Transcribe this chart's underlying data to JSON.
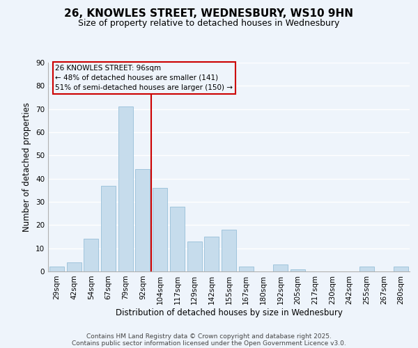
{
  "title": "26, KNOWLES STREET, WEDNESBURY, WS10 9HN",
  "subtitle": "Size of property relative to detached houses in Wednesbury",
  "xlabel": "Distribution of detached houses by size in Wednesbury",
  "ylabel": "Number of detached properties",
  "bar_labels": [
    "29sqm",
    "42sqm",
    "54sqm",
    "67sqm",
    "79sqm",
    "92sqm",
    "104sqm",
    "117sqm",
    "129sqm",
    "142sqm",
    "155sqm",
    "167sqm",
    "180sqm",
    "192sqm",
    "205sqm",
    "217sqm",
    "230sqm",
    "242sqm",
    "255sqm",
    "267sqm",
    "280sqm"
  ],
  "bar_values": [
    2,
    4,
    14,
    37,
    71,
    44,
    36,
    28,
    13,
    15,
    18,
    2,
    0,
    3,
    1,
    0,
    0,
    0,
    2,
    0,
    2
  ],
  "bar_color": "#c6dcec",
  "bar_edge_color": "#a0c4dc",
  "ylim": [
    0,
    90
  ],
  "yticks": [
    0,
    10,
    20,
    30,
    40,
    50,
    60,
    70,
    80,
    90
  ],
  "vline_x": 5.5,
  "vline_color": "#cc0000",
  "annotation_title": "26 KNOWLES STREET: 96sqm",
  "annotation_line1": "← 48% of detached houses are smaller (141)",
  "annotation_line2": "51% of semi-detached houses are larger (150) →",
  "footer1": "Contains HM Land Registry data © Crown copyright and database right 2025.",
  "footer2": "Contains public sector information licensed under the Open Government Licence v3.0.",
  "bg_color": "#eef4fb",
  "grid_color": "#ffffff",
  "title_fontsize": 11,
  "subtitle_fontsize": 9,
  "axis_label_fontsize": 8.5,
  "tick_fontsize": 7.5,
  "footer_fontsize": 6.5
}
